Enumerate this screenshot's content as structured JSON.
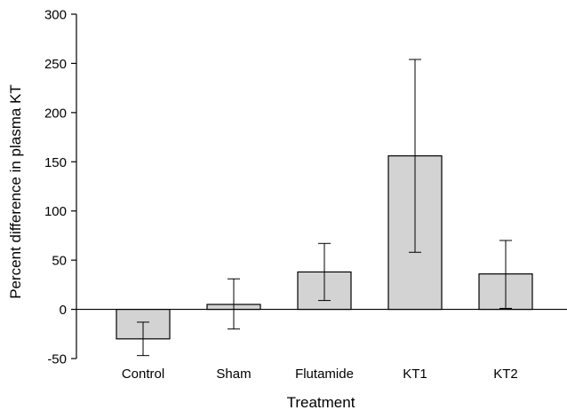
{
  "chart_data": {
    "type": "bar",
    "xlabel": "Treatment",
    "ylabel": "Percent difference in plasma KT",
    "ylim": [
      -50,
      300
    ],
    "yticks": [
      -50,
      0,
      50,
      100,
      150,
      200,
      250,
      300
    ],
    "grid": false,
    "legend": "none",
    "categories": [
      "Control",
      "Sham",
      "Flutamide",
      "KT1",
      "KT2"
    ],
    "values": [
      -30,
      5,
      38,
      156,
      36
    ],
    "error_low": [
      -47,
      -20,
      9,
      58,
      1
    ],
    "error_high": [
      -13,
      31,
      67,
      254,
      70
    ],
    "bar_color": "#d3d3d3",
    "bar_edge_color": "#000000"
  }
}
